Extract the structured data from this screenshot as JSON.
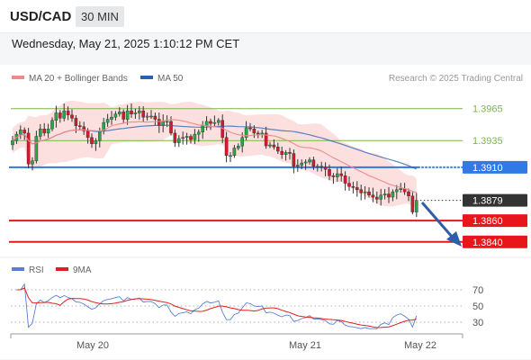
{
  "header": {
    "symbol": "USD/CAD",
    "timeframe": "30 MIN",
    "datetime": "Wednesday, May 21, 2025 1:10:12 PM CET"
  },
  "legend": {
    "items": [
      {
        "label": "MA 20 + Bollinger Bands",
        "color": "#f08a8a"
      },
      {
        "label": "MA 50",
        "color": "#2b5fb0"
      }
    ],
    "credit": "Research © 2025 Trading Central"
  },
  "rsi_legend": {
    "items": [
      {
        "label": "RSI",
        "color": "#5a7fd6"
      },
      {
        "label": "9MA",
        "color": "#e02020"
      }
    ]
  },
  "chart_data": [
    {
      "type": "candlestick",
      "ylim": [
        1.3828,
        1.3985
      ],
      "grid": false,
      "legend_position": "top-left",
      "x_ticks": [
        "May 20",
        "May 21",
        "May 22"
      ],
      "levels": [
        {
          "label": "1.3965",
          "value": 1.3965,
          "color": "#7ab648",
          "style": "thin",
          "badge": "text"
        },
        {
          "label": "1.3935",
          "value": 1.3935,
          "color": "#7ab648",
          "style": "thin",
          "badge": "text"
        },
        {
          "label": "1.3910",
          "value": 1.391,
          "color": "#2f7ae5",
          "style": "line",
          "badge": "box"
        },
        {
          "label": "1.3879",
          "value": 1.3879,
          "color": "#333333",
          "style": "dotted",
          "badge": "box"
        },
        {
          "label": "1.3860",
          "value": 1.386,
          "color": "#e8151b",
          "style": "line",
          "badge": "box"
        },
        {
          "label": "1.3840",
          "value": 1.384,
          "color": "#e8151b",
          "style": "line",
          "badge": "box"
        }
      ],
      "closes": [
        1.3935,
        1.3941,
        1.3945,
        1.3942,
        1.3913,
        1.3916,
        1.3939,
        1.3946,
        1.3942,
        1.3946,
        1.3954,
        1.3961,
        1.3956,
        1.3963,
        1.3959,
        1.3956,
        1.3949,
        1.3948,
        1.3944,
        1.3938,
        1.3932,
        1.3935,
        1.3944,
        1.3952,
        1.3955,
        1.3957,
        1.396,
        1.3962,
        1.3955,
        1.3963,
        1.396,
        1.3961,
        1.3963,
        1.3957,
        1.3958,
        1.3958,
        1.3955,
        1.3949,
        1.3953,
        1.3953,
        1.3942,
        1.3933,
        1.3937,
        1.3938,
        1.3939,
        1.3936,
        1.3941,
        1.3943,
        1.3949,
        1.3953,
        1.3951,
        1.3952,
        1.3954,
        1.3938,
        1.3921,
        1.3921,
        1.3928,
        1.393,
        1.3938,
        1.3947,
        1.3946,
        1.3942,
        1.3941,
        1.3942,
        1.393,
        1.3931,
        1.3929,
        1.3925,
        1.3922,
        1.3924,
        1.3923,
        1.3911,
        1.3912,
        1.3914,
        1.3915,
        1.3917,
        1.3911,
        1.3911,
        1.391,
        1.3908,
        1.3902,
        1.3901,
        1.3904,
        1.3902,
        1.3895,
        1.3892,
        1.3891,
        1.3889,
        1.3886,
        1.3887,
        1.3884,
        1.3882,
        1.388,
        1.3884,
        1.3885,
        1.3882,
        1.3887,
        1.3889,
        1.389,
        1.3887,
        1.3883,
        1.3868,
        1.3879
      ]
    },
    {
      "type": "line",
      "title": "RSI",
      "ylim": [
        20,
        80
      ],
      "y_ticks": [
        70,
        50,
        30
      ],
      "series": [
        {
          "name": "RSI",
          "color": "#5a7fd6"
        },
        {
          "name": "9MA",
          "color": "#e02020"
        }
      ]
    }
  ]
}
